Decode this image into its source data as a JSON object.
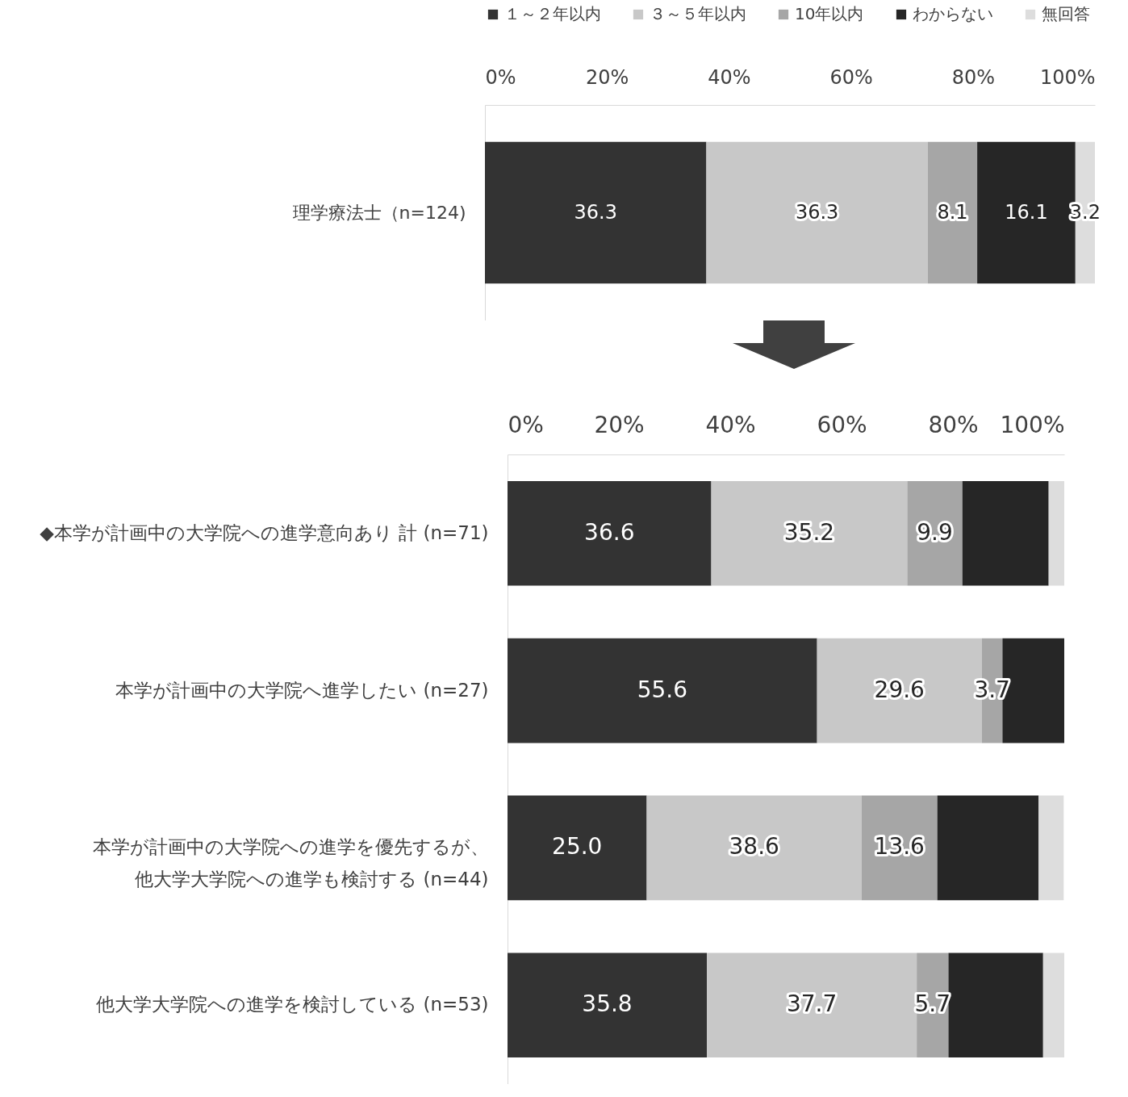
{
  "chart_data": [
    {
      "type": "bar",
      "orientation": "horizontal",
      "stacked": true,
      "legend": "top",
      "grid": false,
      "categories": [
        "理学療法士（n=124)"
      ],
      "xlim": [
        0,
        100
      ],
      "xticks": [
        {
          "value": 0,
          "label": "0%"
        },
        {
          "value": 20,
          "label": "20%"
        },
        {
          "value": 40,
          "label": "40%"
        },
        {
          "value": 60,
          "label": "60%"
        },
        {
          "value": 80,
          "label": "80%"
        },
        {
          "value": 100,
          "label": "100%"
        }
      ],
      "data_labels": true,
      "series": [
        {
          "name": "１～２年以内",
          "color": "#333333",
          "values": [
            36.3
          ]
        },
        {
          "name": "３～５年以内",
          "color": "#c8c8c8",
          "values": [
            36.3
          ]
        },
        {
          "name": "10年以内",
          "color": "#a6a6a6",
          "values": [
            8.1
          ]
        },
        {
          "name": "わからない",
          "color": "#262626",
          "values": [
            16.1
          ]
        },
        {
          "name": "無回答",
          "color": "#dddddd",
          "values": [
            3.2
          ]
        }
      ]
    },
    {
      "type": "bar",
      "orientation": "horizontal",
      "stacked": true,
      "grid": false,
      "categories": [
        "◆本学が計画中の大学院への進学意向あり 計 (n=71)",
        "本学が計画中の大学院へ進学したい (n=27)",
        "本学が計画中の大学院への進学を優先するが、他大学大学院への進学も検討する (n=44)",
        "他大学大学院への進学を検討している (n=53)"
      ],
      "xlim": [
        0,
        100
      ],
      "xticks": [
        {
          "value": 0,
          "label": "0%"
        },
        {
          "value": 20,
          "label": "20%"
        },
        {
          "value": 40,
          "label": "40%"
        },
        {
          "value": 60,
          "label": "60%"
        },
        {
          "value": 80,
          "label": "80%"
        },
        {
          "value": 100,
          "label": "100%"
        }
      ],
      "series": [
        {
          "color": "#333333",
          "values": [
            36.6,
            55.6,
            25.0,
            35.8
          ],
          "value_labels": [
            "36.6",
            "55.6",
            "25.0",
            "35.8"
          ]
        },
        {
          "color": "#c8c8c8",
          "values": [
            35.2,
            29.6,
            38.6,
            37.7
          ],
          "value_labels": [
            "35.2",
            "29.6",
            "38.6",
            "37.7"
          ]
        },
        {
          "color": "#a6a6a6",
          "values": [
            9.9,
            3.7,
            13.6,
            5.7
          ],
          "value_labels": [
            "9.9",
            "3.7",
            "13.6",
            "5.7"
          ]
        },
        {
          "color": "#262626",
          "values": [
            15.5,
            11.1,
            18.2,
            17.0
          ]
        },
        {
          "color": "#dddddd",
          "values": [
            2.8,
            0,
            4.5,
            3.8
          ]
        }
      ]
    }
  ]
}
